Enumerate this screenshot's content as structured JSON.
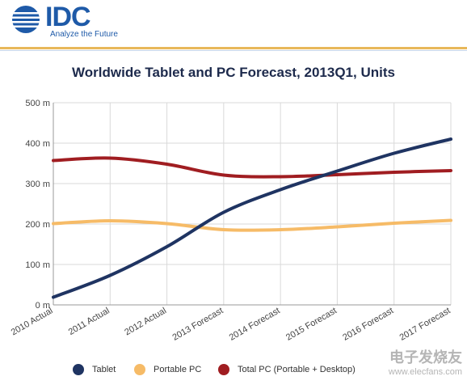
{
  "header": {
    "logo_text": "IDC",
    "tagline": "Analyze the Future"
  },
  "watermark": {
    "main": "电子发烧友",
    "url": "www.elecfans.com"
  },
  "colors": {
    "tablet": "#1f3462",
    "portable_pc": "#f6bb67",
    "total_pc": "#a01d21",
    "grid": "#d9d9d9",
    "axis_text": "#444444"
  },
  "chart_data": {
    "type": "line",
    "title": "Worldwide Tablet and PC Forecast, 2013Q1, Units",
    "xlabel": "",
    "ylabel": "",
    "categories": [
      "2010 Actual",
      "2011 Actual",
      "2012 Actual",
      "2013 Forecast",
      "2014 Forecast",
      "2015 Forecast",
      "2016 Forecast",
      "2017 Forecast"
    ],
    "ylim": [
      0,
      500
    ],
    "yticks": [
      "0 m",
      "100 m",
      "200 m",
      "300 m",
      "400 m",
      "500 m"
    ],
    "grid": true,
    "legend_position": "bottom",
    "series": [
      {
        "name": "Tablet",
        "values": [
          19,
          73,
          144,
          229,
          285,
          331,
          375,
          410
        ]
      },
      {
        "name": "Portable PC",
        "values": [
          201,
          208,
          201,
          186,
          186,
          193,
          202,
          209
        ]
      },
      {
        "name": "Total PC (Portable + Desktop)",
        "values": [
          357,
          363,
          348,
          321,
          317,
          322,
          328,
          332
        ]
      }
    ]
  }
}
